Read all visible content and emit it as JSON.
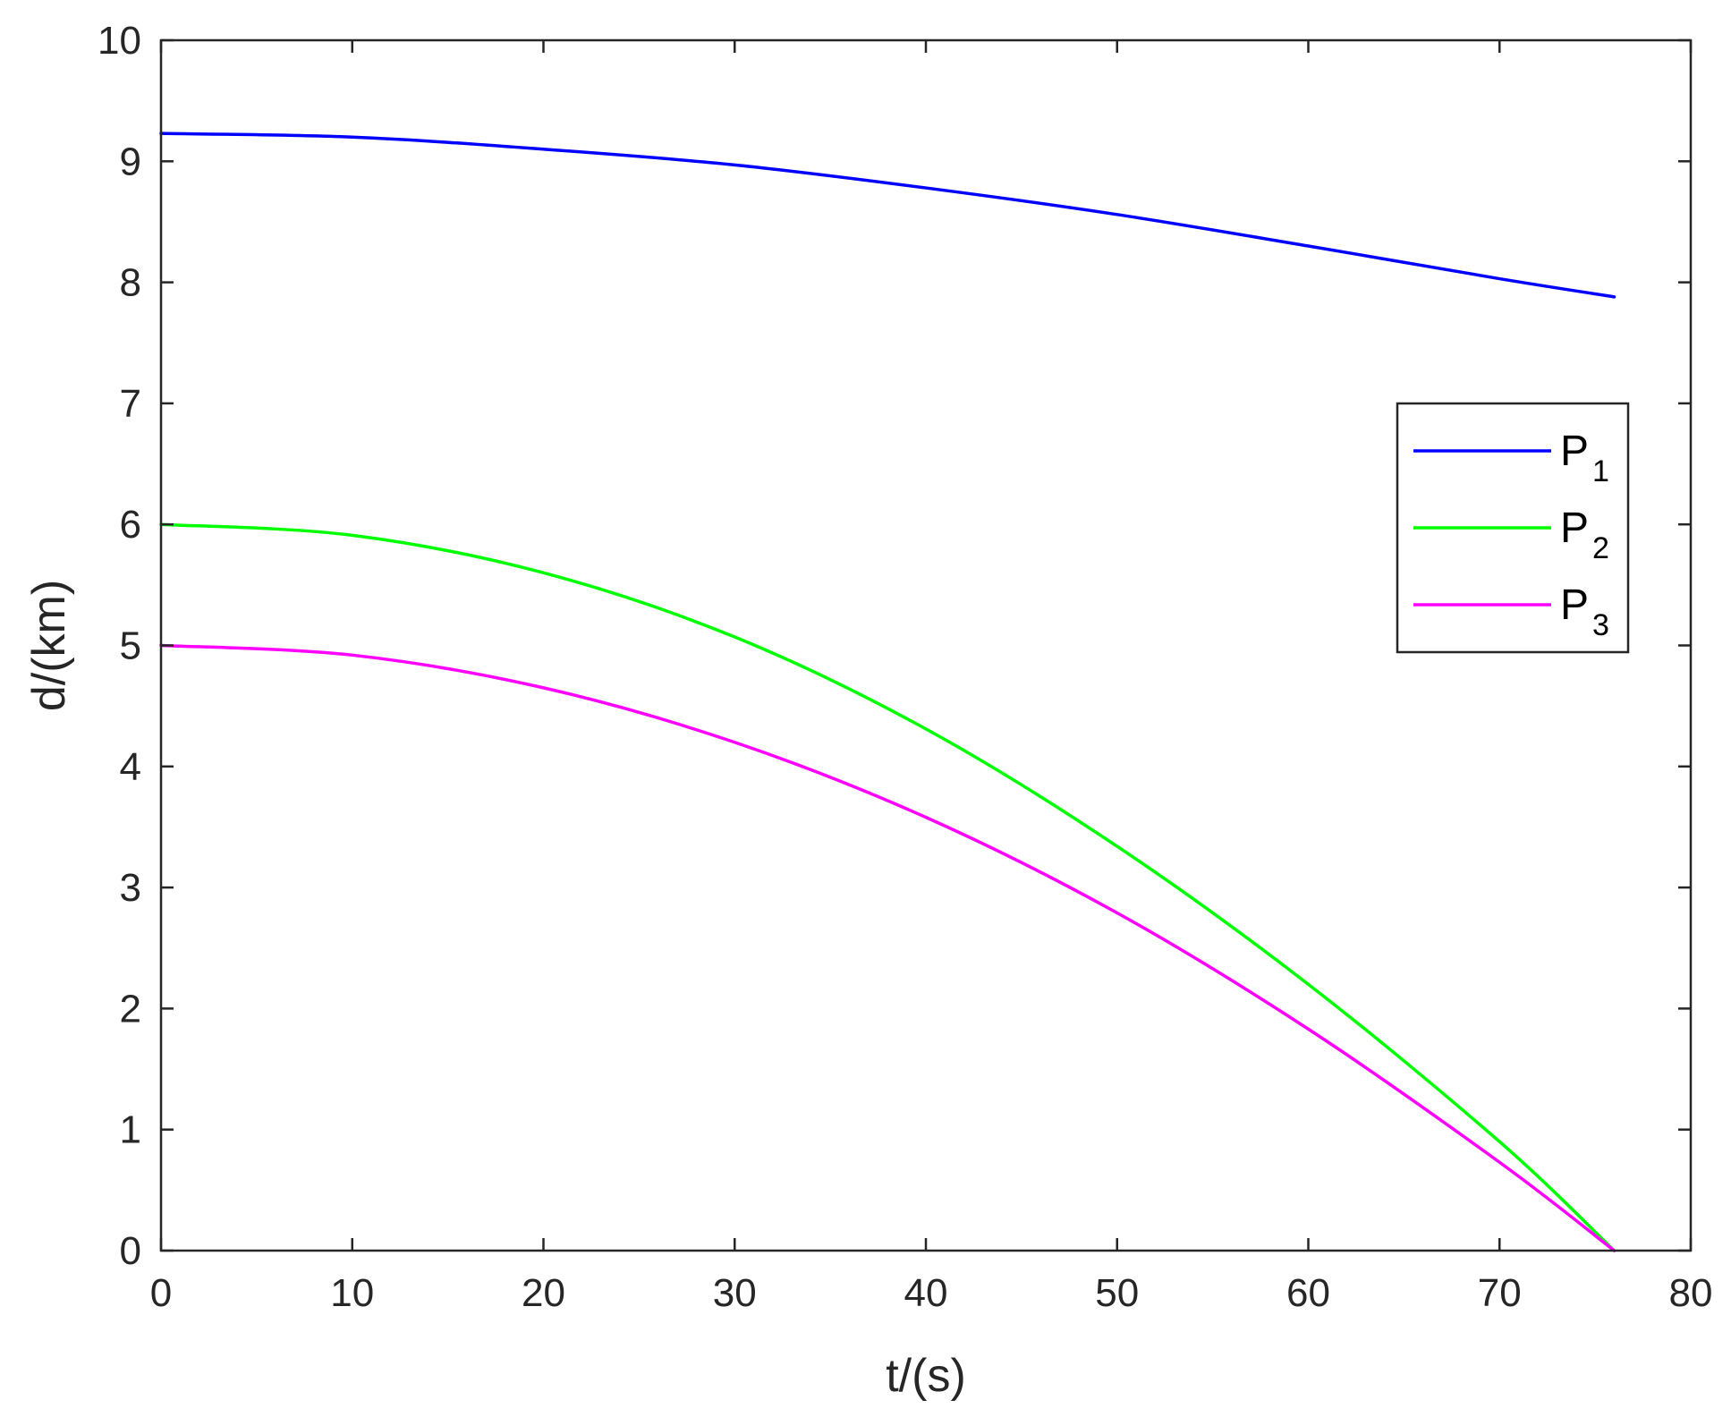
{
  "chart_data": {
    "type": "line",
    "title": "",
    "xlabel": "t/(s)",
    "ylabel": "d/(km)",
    "xlim": [
      0,
      80
    ],
    "ylim": [
      0,
      10
    ],
    "xticks": [
      0,
      10,
      20,
      30,
      40,
      50,
      60,
      70,
      80
    ],
    "yticks": [
      0,
      1,
      2,
      3,
      4,
      5,
      6,
      7,
      8,
      9,
      10
    ],
    "grid": false,
    "legend_position": "right",
    "series": [
      {
        "name": "P1",
        "label_main": "P",
        "label_sub": "1",
        "color": "#0000ff",
        "x": [
          0,
          10,
          20,
          30,
          40,
          50,
          60,
          70,
          76
        ],
        "y": [
          9.23,
          9.2,
          9.1,
          8.97,
          8.78,
          8.56,
          8.3,
          8.03,
          7.88
        ]
      },
      {
        "name": "P2",
        "label_main": "P",
        "label_sub": "2",
        "color": "#00ff00",
        "x": [
          0,
          10,
          20,
          30,
          40,
          50,
          60,
          70,
          76
        ],
        "y": [
          6.0,
          5.91,
          5.6,
          5.07,
          4.31,
          3.34,
          2.2,
          0.9,
          0.0
        ]
      },
      {
        "name": "P3",
        "label_main": "P",
        "label_sub": "3",
        "color": "#ff00ff",
        "x": [
          0,
          10,
          20,
          30,
          40,
          50,
          60,
          70,
          76
        ],
        "y": [
          5.0,
          4.92,
          4.65,
          4.2,
          3.58,
          2.79,
          1.83,
          0.73,
          0.0
        ]
      }
    ]
  }
}
